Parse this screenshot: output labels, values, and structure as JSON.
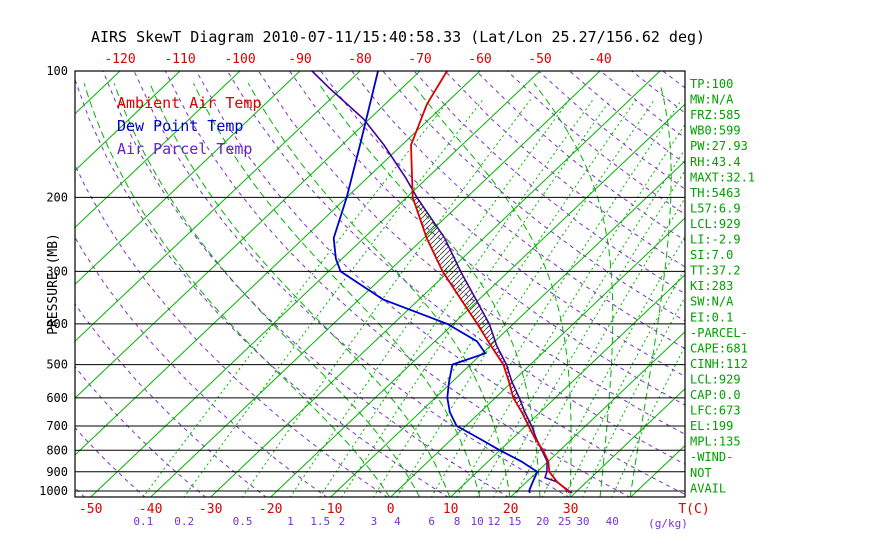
{
  "title": "AIRS SkewT Diagram 2010-07-11/15:40:58.33 (Lat/Lon 25.27/156.62 deg)",
  "legend": [
    {
      "label": "Ambient Air Temp",
      "color": "#dd0000"
    },
    {
      "label": "Dew Point Temp",
      "color": "#0000cc"
    },
    {
      "label": "Air Parcel Temp",
      "color": "#6622cc"
    }
  ],
  "axes": {
    "ylabel": "PRESSURE (MB)",
    "pressure_ticks": [
      100,
      200,
      300,
      400,
      500,
      600,
      700,
      800,
      900,
      1000
    ],
    "top_temp_ticks": [
      -120,
      -110,
      -100,
      -90,
      -80,
      -70,
      -60,
      -50,
      -40
    ],
    "bottom_temp_ticks": [
      -50,
      -40,
      -30,
      -20,
      -10,
      0,
      10,
      20,
      30
    ],
    "temp_unit_label": "T(C)",
    "mixing_unit_label": "(g/kg)"
  },
  "stats_panel": [
    "TP:100",
    "MW:N/A",
    "FRZ:585",
    "WB0:599",
    "PW:27.93",
    "RH:43.4",
    "MAXT:32.1",
    "TH:5463",
    "L57:6.9",
    "LCL:929",
    "LI:-2.9",
    "SI:7.0",
    "TT:37.2",
    "KI:283",
    "SW:N/A",
    "EI:0.1",
    "-PARCEL-",
    "CAPE:681",
    "CINH:112",
    "LCL:929",
    "CAP:0.0",
    "LFC:673",
    "EL:199",
    "MPL:135",
    "-WIND-",
    "NOT",
    "AVAIL"
  ],
  "colors": {
    "line_green": "#00b300",
    "text_green": "#00a000",
    "dashed_violet": "#7733cc",
    "axis_red": "#dd0000",
    "mixing_violet": "#7733cc",
    "frame_black": "#000000",
    "hatch": "#333333"
  },
  "chart_data": {
    "type": "line",
    "projection": "skew-t-log-p",
    "pressure_range_mb": [
      100,
      1037
    ],
    "isotherms_C": {
      "start": -130,
      "end": 50,
      "step": 10
    },
    "dry_adiabats_theta_K": {
      "start": 220,
      "end": 480,
      "step": 10
    },
    "moist_adiabat_start_temps_C": [
      0,
      5,
      10,
      15,
      20,
      25,
      30,
      35,
      40
    ],
    "mixing_ratios_g_kg": [
      0.1,
      0.2,
      0.5,
      1,
      1.5,
      2,
      3,
      4,
      6,
      8,
      10,
      12,
      15,
      20,
      25,
      30,
      40
    ],
    "cape_hatch_pressure_range_mb": [
      700,
      200
    ],
    "series": [
      {
        "name": "ambient_air_temp",
        "color": "#dd0000",
        "points_p_t": [
          [
            1010,
            29
          ],
          [
            1000,
            28.5
          ],
          [
            950,
            25
          ],
          [
            900,
            22
          ],
          [
            850,
            20
          ],
          [
            800,
            17.2
          ],
          [
            750,
            13.8
          ],
          [
            700,
            10.5
          ],
          [
            650,
            7
          ],
          [
            600,
            3
          ],
          [
            550,
            -0.5
          ],
          [
            500,
            -4.5
          ],
          [
            450,
            -10
          ],
          [
            400,
            -16
          ],
          [
            350,
            -23
          ],
          [
            300,
            -31
          ],
          [
            250,
            -39.5
          ],
          [
            200,
            -49
          ],
          [
            150,
            -58.5
          ],
          [
            120,
            -63
          ],
          [
            100,
            -65.5
          ]
        ]
      },
      {
        "name": "dew_point_temp",
        "color": "#0000cc",
        "points_p_t": [
          [
            1010,
            22.5
          ],
          [
            1000,
            22
          ],
          [
            950,
            21
          ],
          [
            900,
            20
          ],
          [
            850,
            15.5
          ],
          [
            800,
            10
          ],
          [
            750,
            4.5
          ],
          [
            700,
            -1.5
          ],
          [
            650,
            -5
          ],
          [
            600,
            -8
          ],
          [
            550,
            -10.5
          ],
          [
            500,
            -13
          ],
          [
            470,
            -9.5
          ],
          [
            440,
            -13
          ],
          [
            400,
            -21
          ],
          [
            350,
            -36
          ],
          [
            300,
            -48
          ],
          [
            280,
            -51
          ],
          [
            250,
            -55
          ],
          [
            200,
            -60
          ],
          [
            150,
            -67
          ],
          [
            100,
            -77
          ]
        ]
      },
      {
        "name": "air_parcel_temp",
        "color": "#440099",
        "points_p_t": [
          [
            1010,
            29.5
          ],
          [
            1000,
            28.7
          ],
          [
            950,
            24.9
          ],
          [
            929,
            22.3
          ],
          [
            900,
            21.6
          ],
          [
            850,
            19.8
          ],
          [
            800,
            17
          ],
          [
            750,
            14
          ],
          [
            700,
            11
          ],
          [
            650,
            7.5
          ],
          [
            600,
            4
          ],
          [
            550,
            0
          ],
          [
            500,
            -4
          ],
          [
            450,
            -9
          ],
          [
            400,
            -14
          ],
          [
            350,
            -20.5
          ],
          [
            300,
            -28
          ],
          [
            250,
            -36.5
          ],
          [
            200,
            -48.3
          ],
          [
            180,
            -53.5
          ],
          [
            150,
            -63
          ],
          [
            130,
            -71
          ],
          [
            110,
            -82
          ],
          [
            100,
            -88
          ]
        ]
      }
    ]
  }
}
